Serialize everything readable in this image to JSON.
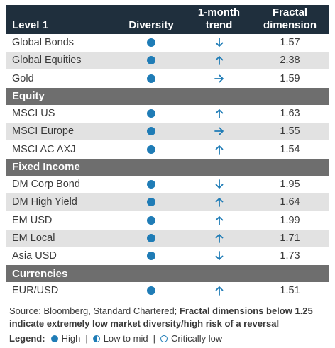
{
  "header": {
    "col1": "Level 1",
    "col2": "Diversity",
    "col3_line1": "1-month",
    "col3_line2": "trend",
    "col4_line1": "Fractal",
    "col4_line2": "dimension"
  },
  "colors": {
    "header_bg": "#1f2f3d",
    "section_bg": "#6e6e6e",
    "row_shade": "#e2e2e2",
    "accent": "#1f7cb6"
  },
  "level1_rows": [
    {
      "name": "Global Bonds",
      "diversity": "high",
      "trend": "down",
      "fd": "1.57"
    },
    {
      "name": "Global Equities",
      "diversity": "high",
      "trend": "up",
      "fd": "2.38"
    },
    {
      "name": "Gold",
      "diversity": "high",
      "trend": "right",
      "fd": "1.59"
    }
  ],
  "sections": [
    {
      "title": "Equity"
    },
    {
      "title": "Fixed Income"
    },
    {
      "title": "Currencies"
    }
  ],
  "equity_rows": [
    {
      "name": "MSCI US",
      "diversity": "high",
      "trend": "up",
      "fd": "1.63"
    },
    {
      "name": "MSCI Europe",
      "diversity": "high",
      "trend": "right",
      "fd": "1.55"
    },
    {
      "name": "MSCI AC AXJ",
      "diversity": "high",
      "trend": "up",
      "fd": "1.54"
    }
  ],
  "fixed_income_rows": [
    {
      "name": "DM Corp Bond",
      "diversity": "high",
      "trend": "down",
      "fd": "1.95"
    },
    {
      "name": "DM High Yield",
      "diversity": "high",
      "trend": "up",
      "fd": "1.64"
    },
    {
      "name": "EM USD",
      "diversity": "high",
      "trend": "up",
      "fd": "1.99"
    },
    {
      "name": "EM Local",
      "diversity": "high",
      "trend": "up",
      "fd": "1.71"
    },
    {
      "name": "Asia USD",
      "diversity": "high",
      "trend": "down",
      "fd": "1.73"
    }
  ],
  "currency_rows": [
    {
      "name": "EUR/USD",
      "diversity": "high",
      "trend": "up",
      "fd": "1.51"
    }
  ],
  "source": {
    "plain": "Source: Bloomberg, Standard Chartered; ",
    "bold": "Fractal dimensions below 1.25 indicate extremely low market diversity/high risk of a reversal"
  },
  "legend": {
    "label": "Legend:",
    "items": [
      "High",
      "Low to mid",
      "Critically low"
    ],
    "separator": "|"
  }
}
